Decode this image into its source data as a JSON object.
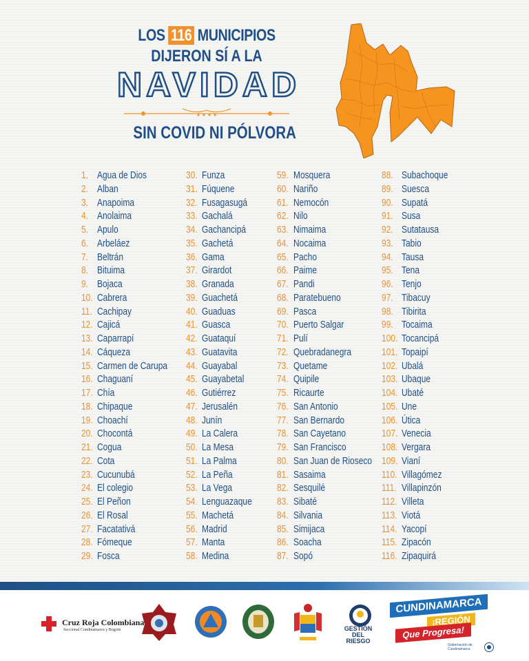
{
  "header": {
    "line1_pre": "LOS",
    "line1_highlight": "116",
    "line1_post": "MUNICIPIOS",
    "line2": "DIJERON SÍ A LA",
    "line3": "NAVIDAD",
    "line4": "SIN COVID NI PÓLVORA"
  },
  "colors": {
    "blue": "#1f4f86",
    "orange": "#f2912a"
  },
  "municipios": [
    {
      "n": "1.",
      "name": "Agua de Dios"
    },
    {
      "n": "2.",
      "name": "Alban"
    },
    {
      "n": "3.",
      "name": "Anapoima"
    },
    {
      "n": "4.",
      "name": "Anolaima"
    },
    {
      "n": "5.",
      "name": "Apulo"
    },
    {
      "n": "6.",
      "name": "Arbeláez"
    },
    {
      "n": "7.",
      "name": "Beltrán"
    },
    {
      "n": "8.",
      "name": "Bituima"
    },
    {
      "n": "9.",
      "name": "Bojaca"
    },
    {
      "n": "10.",
      "name": "Cabrera"
    },
    {
      "n": "11.",
      "name": "Cachipay"
    },
    {
      "n": "12.",
      "name": "Cajicá"
    },
    {
      "n": "13.",
      "name": "Caparrapí"
    },
    {
      "n": "14.",
      "name": "Cáqueza"
    },
    {
      "n": "15.",
      "name": "Carmen de Carupa"
    },
    {
      "n": "16.",
      "name": "Chaguaní"
    },
    {
      "n": "17.",
      "name": "Chía"
    },
    {
      "n": "18.",
      "name": "Chipaque"
    },
    {
      "n": "19.",
      "name": "Choachí"
    },
    {
      "n": "20.",
      "name": "Chocontá"
    },
    {
      "n": "21.",
      "name": "Cogua"
    },
    {
      "n": "22.",
      "name": "Cota"
    },
    {
      "n": "23.",
      "name": "Cucunubá"
    },
    {
      "n": "24.",
      "name": "El colegio"
    },
    {
      "n": "25.",
      "name": "El Peñon"
    },
    {
      "n": "26.",
      "name": "El Rosal"
    },
    {
      "n": "27.",
      "name": "Facatativá"
    },
    {
      "n": "28.",
      "name": "Fómeque"
    },
    {
      "n": "29.",
      "name": "Fosca"
    },
    {
      "n": "30.",
      "name": "Funza"
    },
    {
      "n": "31.",
      "name": "Fúquene"
    },
    {
      "n": "32.",
      "name": "Fusagasugá"
    },
    {
      "n": "33.",
      "name": "Gachalá"
    },
    {
      "n": "34.",
      "name": "Gachancipá"
    },
    {
      "n": "35.",
      "name": "Gachetá"
    },
    {
      "n": "36.",
      "name": "Gama"
    },
    {
      "n": "37.",
      "name": "Girardot"
    },
    {
      "n": "38.",
      "name": "Granada"
    },
    {
      "n": "39.",
      "name": "Guachetá"
    },
    {
      "n": "40.",
      "name": "Guaduas"
    },
    {
      "n": "41.",
      "name": "Guasca"
    },
    {
      "n": "42.",
      "name": "Guataquí"
    },
    {
      "n": "43.",
      "name": "Guatavita"
    },
    {
      "n": "44.",
      "name": "Guayabal"
    },
    {
      "n": "45.",
      "name": "Guayabetal"
    },
    {
      "n": "46.",
      "name": "Gutiérrez"
    },
    {
      "n": "47.",
      "name": "Jerusalén"
    },
    {
      "n": "48.",
      "name": "Junín"
    },
    {
      "n": "49.",
      "name": "La Calera"
    },
    {
      "n": "50.",
      "name": "La Mesa"
    },
    {
      "n": "51.",
      "name": "La Palma"
    },
    {
      "n": "52.",
      "name": "La Peña"
    },
    {
      "n": "53.",
      "name": "La Vega"
    },
    {
      "n": "54.",
      "name": "Lenguazaque"
    },
    {
      "n": "55.",
      "name": "Machetá"
    },
    {
      "n": "56.",
      "name": "Madrid"
    },
    {
      "n": "57.",
      "name": "Manta"
    },
    {
      "n": "58.",
      "name": "Medina"
    },
    {
      "n": "59.",
      "name": "Mosquera"
    },
    {
      "n": "60.",
      "name": "Nariño"
    },
    {
      "n": "61.",
      "name": "Nemocón"
    },
    {
      "n": "62.",
      "name": "Nilo"
    },
    {
      "n": "63.",
      "name": "Nimaima"
    },
    {
      "n": "64.",
      "name": "Nocaima"
    },
    {
      "n": "65.",
      "name": "Pacho"
    },
    {
      "n": "66.",
      "name": "Paime"
    },
    {
      "n": "67.",
      "name": "Pandi"
    },
    {
      "n": "68.",
      "name": "Paratebueno"
    },
    {
      "n": "69.",
      "name": "Pasca"
    },
    {
      "n": "70.",
      "name": "Puerto Salgar"
    },
    {
      "n": "71.",
      "name": "Pulí"
    },
    {
      "n": "72.",
      "name": "Quebradanegra"
    },
    {
      "n": "73.",
      "name": "Quetame"
    },
    {
      "n": "74.",
      "name": "Quipile"
    },
    {
      "n": "75.",
      "name": "Ricaurte"
    },
    {
      "n": "76.",
      "name": "San Antonio"
    },
    {
      "n": "77.",
      "name": "San Bernardo"
    },
    {
      "n": "78.",
      "name": "San Cayetano"
    },
    {
      "n": "79.",
      "name": "San Francisco"
    },
    {
      "n": "80.",
      "name": "San Juan de Rioseco"
    },
    {
      "n": "81.",
      "name": "Sasaima"
    },
    {
      "n": "82.",
      "name": "Sesquilé"
    },
    {
      "n": "83.",
      "name": "Sibaté"
    },
    {
      "n": "84.",
      "name": "Silvania"
    },
    {
      "n": "85.",
      "name": "Simijaca"
    },
    {
      "n": "86.",
      "name": "Soacha"
    },
    {
      "n": "87.",
      "name": "Sopó"
    },
    {
      "n": "88.",
      "name": "Subachoque"
    },
    {
      "n": "89.",
      "name": "Suesca"
    },
    {
      "n": "90.",
      "name": "Supatá"
    },
    {
      "n": "91.",
      "name": "Susa"
    },
    {
      "n": "92.",
      "name": "Sutatausa"
    },
    {
      "n": "93.",
      "name": "Tabio"
    },
    {
      "n": "94.",
      "name": "Tausa"
    },
    {
      "n": "95.",
      "name": "Tena"
    },
    {
      "n": "96.",
      "name": "Tenjo"
    },
    {
      "n": "97.",
      "name": "Tibacuy"
    },
    {
      "n": "98.",
      "name": "Tibirita"
    },
    {
      "n": "99.",
      "name": "Tocaima"
    },
    {
      "n": "100.",
      "name": "Tocancipá"
    },
    {
      "n": "101.",
      "name": "Topaipí"
    },
    {
      "n": "102.",
      "name": "Ubalá"
    },
    {
      "n": "103.",
      "name": "Ubaque"
    },
    {
      "n": "104.",
      "name": "Ubaté"
    },
    {
      "n": "105.",
      "name": "Une"
    },
    {
      "n": "106.",
      "name": "Útica"
    },
    {
      "n": "107.",
      "name": "Venecia"
    },
    {
      "n": "108.",
      "name": "Vergara"
    },
    {
      "n": "109.",
      "name": "Vianí"
    },
    {
      "n": "110.",
      "name": "Villagómez"
    },
    {
      "n": "111.",
      "name": "Villapinzón"
    },
    {
      "n": "112.",
      "name": "Villeta"
    },
    {
      "n": "113.",
      "name": "Viotá"
    },
    {
      "n": "114.",
      "name": "Yacopí"
    },
    {
      "n": "115.",
      "name": "Zipacón"
    },
    {
      "n": "116.",
      "name": "Zipaquirá"
    }
  ],
  "footer": {
    "cruz_roja": "Cruz Roja Colombiana",
    "cruz_roja_sub": "Seccional Cundinamarca y Bogotá",
    "gestion": "GESTIÓN DEL RIESGO",
    "cundinamarca": "CUNDINAMARCA",
    "region": "¡REGIÓN",
    "progresa": "Que Progresa!",
    "gobernacion": "Gobernación de Cundinamarca"
  }
}
